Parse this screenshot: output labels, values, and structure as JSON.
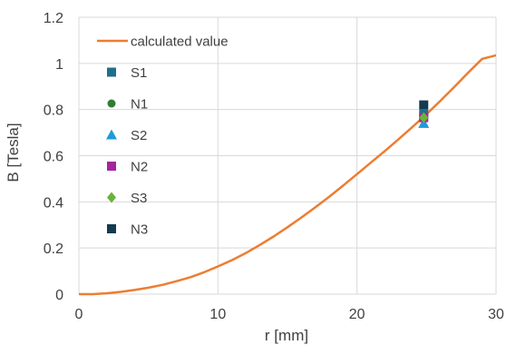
{
  "chart_data": {
    "type": "scatter",
    "title": "",
    "xlabel": "r [mm]",
    "ylabel": "B [Tesla]",
    "xlim": [
      0,
      30
    ],
    "ylim": [
      0,
      1.2
    ],
    "x_ticks": [
      "0",
      "10",
      "20",
      "30"
    ],
    "y_ticks": [
      "0",
      "0.2",
      "0.4",
      "0.6",
      "0.8",
      "1",
      "1.2"
    ],
    "grid": true,
    "legend_position": "top-left",
    "series": [
      {
        "name": "calculated value",
        "kind": "line",
        "color": "#ED7D31",
        "x": [
          0,
          1,
          2,
          3,
          4,
          5,
          6,
          7,
          8,
          9,
          10,
          11,
          12,
          13,
          14,
          15,
          16,
          17,
          18,
          19,
          20,
          21,
          22,
          23,
          24,
          25,
          26,
          27,
          28,
          29,
          30
        ],
        "y": [
          0,
          0,
          0.004,
          0.01,
          0.018,
          0.028,
          0.04,
          0.056,
          0.073,
          0.095,
          0.12,
          0.147,
          0.178,
          0.213,
          0.25,
          0.29,
          0.332,
          0.376,
          0.422,
          0.47,
          0.52,
          0.57,
          0.62,
          0.672,
          0.725,
          0.78,
          0.838,
          0.898,
          0.96,
          1.02,
          1.035
        ]
      },
      {
        "name": "S1",
        "kind": "marker",
        "marker": "square",
        "color": "#1F6E8C",
        "x": [
          24.8
        ],
        "y": [
          0.78
        ]
      },
      {
        "name": "N1",
        "kind": "marker",
        "marker": "circle",
        "color": "#2E7D32",
        "x": [
          24.8
        ],
        "y": [
          0.77
        ]
      },
      {
        "name": "S2",
        "kind": "marker",
        "marker": "triangle",
        "color": "#1E9BD7",
        "x": [
          24.8
        ],
        "y": [
          0.74
        ]
      },
      {
        "name": "N2",
        "kind": "marker",
        "marker": "square",
        "color": "#A4259E",
        "x": [
          24.8
        ],
        "y": [
          0.765
        ]
      },
      {
        "name": "S3",
        "kind": "marker",
        "marker": "diamond",
        "color": "#6CB23A",
        "x": [
          24.8
        ],
        "y": [
          0.765
        ]
      },
      {
        "name": "N3",
        "kind": "marker",
        "marker": "square",
        "color": "#133A4F",
        "x": [
          24.8
        ],
        "y": [
          0.82
        ]
      }
    ]
  }
}
